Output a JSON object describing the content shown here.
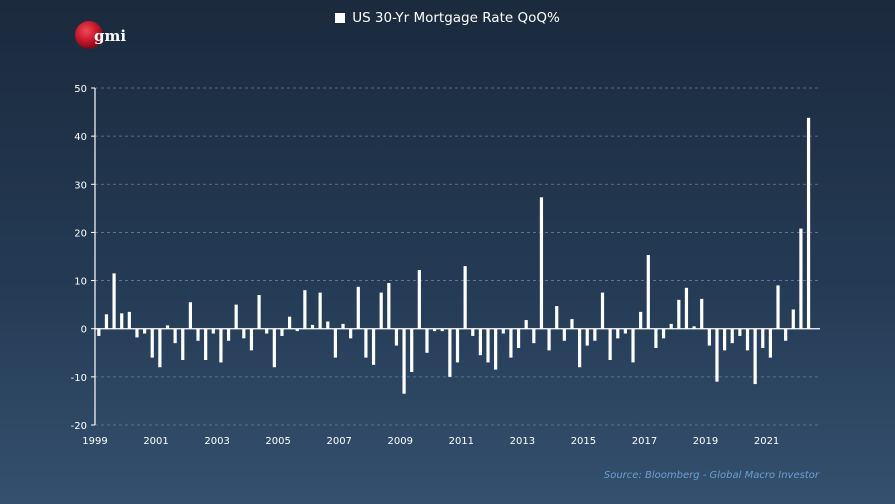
{
  "logo": {
    "text": "gmi"
  },
  "legend": {
    "label": "US 30-Yr Mortgage Rate QoQ%"
  },
  "source": "Source: Bloomberg - Global Macro Investor",
  "colors": {
    "bars": "#ffffff",
    "source": "#6d9ed2",
    "grid": "#6a7f98",
    "logo": "#c4162a"
  },
  "chart_data": {
    "type": "bar",
    "title": "",
    "series": [
      {
        "name": "US 30-Yr Mortgage Rate QoQ%"
      }
    ],
    "x_start": 1999.0,
    "x_step": 0.25,
    "values": [
      -1.5,
      3,
      11.5,
      3.2,
      3.5,
      -1.8,
      -1,
      -6,
      -8,
      0.7,
      -3,
      -6.5,
      5.5,
      -2.5,
      -6.5,
      -1,
      -7,
      -2.5,
      5,
      -2,
      -4.5,
      7,
      -1,
      -8,
      -1.5,
      2.5,
      -0.5,
      8,
      0.8,
      7.5,
      1.5,
      -6,
      1,
      -2,
      8.7,
      -6,
      -7.5,
      7.5,
      9.5,
      -3.5,
      -13.5,
      -9,
      12.2,
      -5,
      -0.5,
      -0.5,
      -10,
      -7,
      13,
      -1.5,
      -5.5,
      -7,
      -8.5,
      -1,
      -6,
      -4,
      1.8,
      -3,
      27.3,
      -4.5,
      4.7,
      -2.5,
      2,
      -8,
      -3.5,
      -2.5,
      7.5,
      -6.5,
      -2,
      -1,
      -7,
      3.5,
      15.3,
      -4,
      -2,
      1,
      6,
      8.5,
      0.5,
      6.2,
      -3.5,
      -11,
      -4.5,
      -3,
      -1.5,
      -4.5,
      -11.5,
      -4,
      -6,
      9,
      -2.5,
      4,
      20.8,
      43.8
    ],
    "xlabel": "",
    "ylabel": "",
    "ylim": [
      -20,
      50
    ],
    "yticks": [
      -20,
      -10,
      0,
      10,
      20,
      30,
      40,
      50
    ],
    "xticks": [
      "1999",
      "2001",
      "2003",
      "2005",
      "2007",
      "2009",
      "2011",
      "2013",
      "2015",
      "2017",
      "2019",
      "2021"
    ],
    "xtick_years": [
      1999,
      2001,
      2003,
      2005,
      2007,
      2009,
      2011,
      2013,
      2015,
      2017,
      2019,
      2021
    ],
    "xlim": [
      1999,
      2022.75
    ],
    "grid": true,
    "legend_position": "top-center"
  }
}
